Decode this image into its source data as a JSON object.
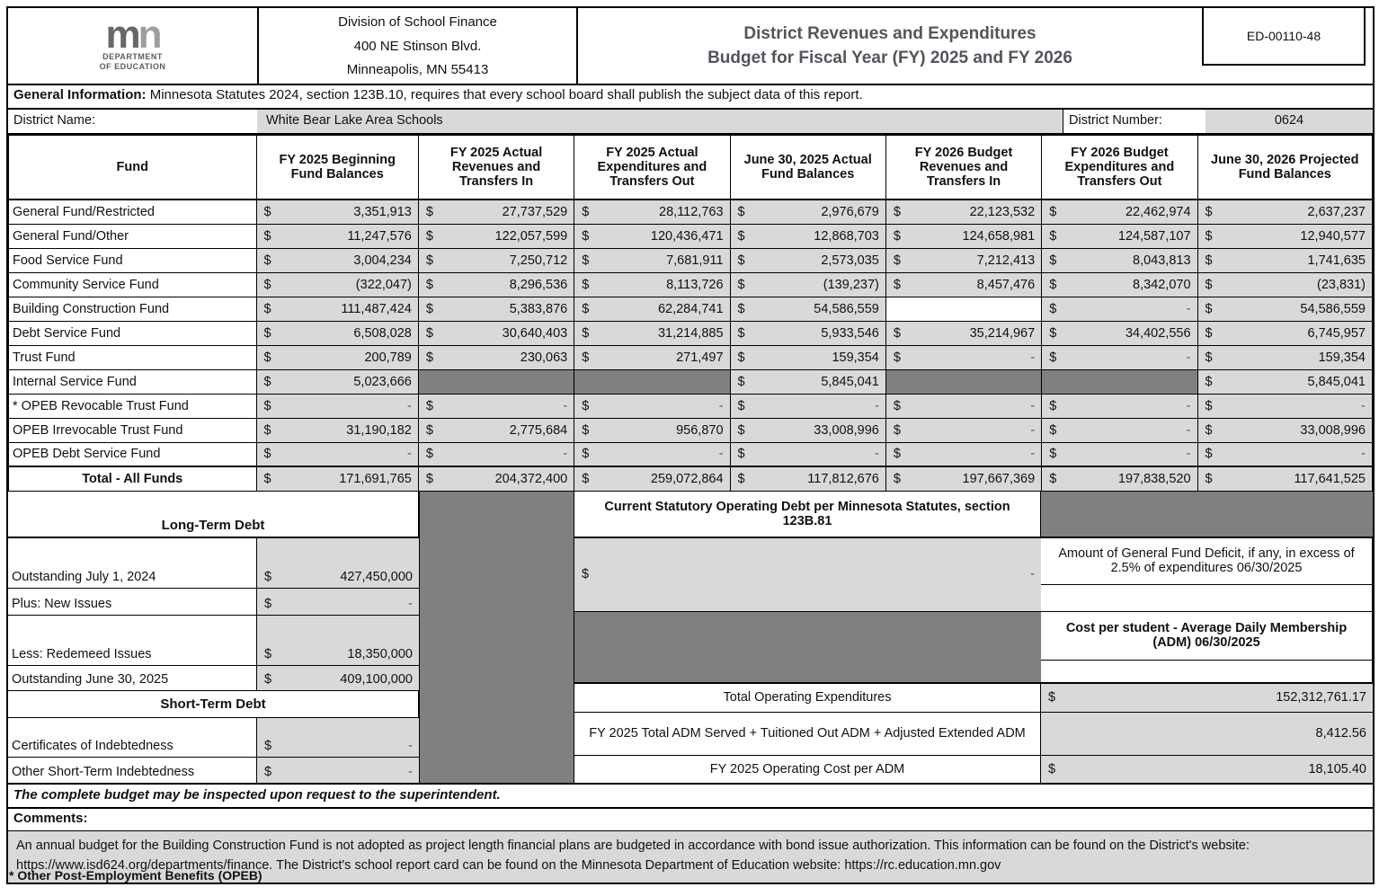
{
  "header": {
    "logo_m": "m",
    "logo_n": "n",
    "logo_caption_line1": "DEPARTMENT",
    "logo_caption_line2": "OF EDUCATION",
    "address_lines": [
      "Division of School Finance",
      "400 NE Stinson Blvd.",
      "Minneapolis, MN 55413"
    ],
    "title_line1": "District Revenues and Expenditures",
    "title_line2": "Budget for Fiscal Year (FY) 2025 and FY 2026",
    "form_code": "ED-00110-48"
  },
  "general_info": {
    "label": "General Information:",
    "text": " Minnesota Statutes 2024, section 123B.10, requires that every school board shall publish the subject data of this report."
  },
  "district": {
    "name_label": "District Name:",
    "name": "White Bear Lake Area Schools",
    "number_label": "District Number:",
    "number": "0624"
  },
  "fund_table": {
    "currency_symbol": "$",
    "columns": [
      "Fund",
      "FY 2025 Beginning Fund Balances",
      "FY 2025 Actual Revenues and Transfers In",
      "FY 2025 Actual Expenditures and Transfers Out",
      "June 30, 2025 Actual Fund Balances",
      "FY 2026 Budget Revenues and Transfers In",
      "FY 2026 Budget Expenditures and Transfers Out",
      "June 30, 2026 Projected Fund Balances"
    ],
    "rows": [
      {
        "label": "General Fund/Restricted",
        "cells": [
          "3,351,913",
          "27,737,529",
          "28,112,763",
          "2,976,679",
          "22,123,532",
          "22,462,974",
          "2,637,237"
        ]
      },
      {
        "label": "General Fund/Other",
        "cells": [
          "11,247,576",
          "122,057,599",
          "120,436,471",
          "12,868,703",
          "124,658,981",
          "124,587,107",
          "12,940,577"
        ]
      },
      {
        "label": "Food Service Fund",
        "cells": [
          "3,004,234",
          "7,250,712",
          "7,681,911",
          "2,573,035",
          "7,212,413",
          "8,043,813",
          "1,741,635"
        ]
      },
      {
        "label": "Community Service Fund",
        "cells": [
          "(322,047)",
          "8,296,536",
          "8,113,726",
          "(139,237)",
          "8,457,476",
          "8,342,070",
          "(23,831)"
        ]
      },
      {
        "label": "Building Construction Fund",
        "cells": [
          "111,487,424",
          "5,383,876",
          "62,284,741",
          "54,586,559",
          "",
          "-",
          "54,586,559"
        ]
      },
      {
        "label": "Debt Service Fund",
        "cells": [
          "6,508,028",
          "30,640,403",
          "31,214,885",
          "5,933,546",
          "35,214,967",
          "34,402,556",
          "6,745,957"
        ]
      },
      {
        "label": "Trust Fund",
        "cells": [
          "200,789",
          "230,063",
          "271,497",
          "159,354",
          "-",
          "-",
          "159,354"
        ]
      },
      {
        "label": "Internal Service Fund",
        "cells": [
          "5,023,666",
          null,
          null,
          "5,845,041",
          null,
          null,
          "5,845,041"
        ]
      },
      {
        "label": "* OPEB Revocable Trust Fund",
        "cells": [
          "-",
          "-",
          "-",
          "-",
          "-",
          "-",
          "-"
        ]
      },
      {
        "label": "OPEB Irrevocable Trust Fund",
        "cells": [
          "31,190,182",
          "2,775,684",
          "956,870",
          "33,008,996",
          "-",
          "-",
          "33,008,996"
        ]
      },
      {
        "label": "OPEB Debt Service Fund",
        "cells": [
          "-",
          "-",
          "-",
          "-",
          "-",
          "-",
          "-"
        ]
      }
    ],
    "total_row": {
      "label": "Total - All Funds",
      "cells": [
        "171,691,765",
        "204,372,400",
        "259,072,864",
        "117,812,676",
        "197,667,369",
        "197,838,520",
        "117,641,525"
      ]
    }
  },
  "long_term_debt": {
    "title": "Long-Term Debt",
    "rows": [
      {
        "label": "Outstanding July 1, 2024",
        "value": "427,450,000"
      },
      {
        "label": "Plus: New Issues",
        "value": "-"
      },
      {
        "label": "Less: Redemeed Issues",
        "value": "18,350,000"
      },
      {
        "label": "Outstanding June 30, 2025",
        "value": "409,100,000"
      }
    ]
  },
  "short_term_debt": {
    "title": "Short-Term Debt",
    "rows": [
      {
        "label": "Certificates of Indebtedness",
        "value": "-"
      },
      {
        "label": "Other Short-Term Indebtedness",
        "value": "-"
      }
    ]
  },
  "statutory": {
    "header": "Current Statutory Operating Debt per Minnesota Statutes, section 123B.81",
    "deficit_label": "Amount of General Fund Deficit, if any, in excess of 2.5% of expenditures 06/30/2025",
    "deficit_value": "-",
    "cost_header": "Cost per student - Average Daily Membership (ADM) 06/30/2025",
    "total_expenditures_label": "Total Operating Expenditures",
    "total_expenditures_value": "152,312,761.17",
    "adm_label": "FY 2025 Total ADM Served + Tuitioned Out ADM + Adjusted Extended ADM",
    "adm_value": "8,412.56",
    "cost_per_adm_label": "FY 2025 Operating Cost per ADM",
    "cost_per_adm_value": "18,105.40"
  },
  "footer": {
    "inspection_note": "The complete budget may be inspected upon request to the superintendent.",
    "comments_label": "Comments:",
    "comments_text": "An annual budget for the Building Construction Fund is not adopted as project length financial plans are budgeted in accordance with bond issue authorization.  This information can be found on the District's website: https://www.isd624.org/departments/finance.  The District's school report card can be found on the Minnesota Department of Education website: https://rc.education.mn.gov",
    "opeb_note": "* Other Post-Employment Benefits (OPEB)"
  }
}
